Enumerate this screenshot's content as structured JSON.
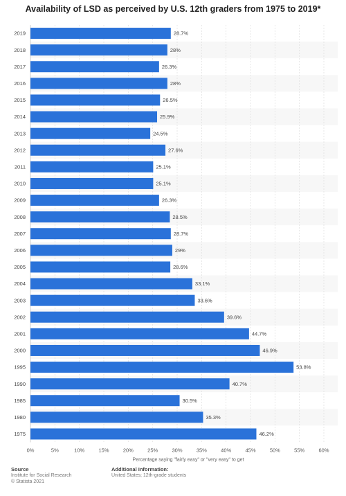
{
  "chart_data": {
    "type": "bar",
    "orientation": "horizontal",
    "title": "Availability of LSD as perceived by U.S. 12th graders from 1975 to 2019*",
    "xlabel": "Percentage saying \"fairly easy\" or \"very easy\" to get",
    "ylabel": "",
    "xlim": [
      0,
      60
    ],
    "x_ticks": [
      "0%",
      "5%",
      "10%",
      "15%",
      "20%",
      "25%",
      "30%",
      "35%",
      "40%",
      "45%",
      "50%",
      "55%",
      "60%"
    ],
    "grid": true,
    "bar_color": "#2a72d9",
    "categories": [
      "2019",
      "2018",
      "2017",
      "2016",
      "2015",
      "2014",
      "2013",
      "2012",
      "2011",
      "2010",
      "2009",
      "2008",
      "2007",
      "2006",
      "2005",
      "2004",
      "2003",
      "2002",
      "2001",
      "2000",
      "1995",
      "1990",
      "1985",
      "1980",
      "1975"
    ],
    "values": [
      28.7,
      28,
      26.3,
      28,
      26.5,
      25.9,
      24.5,
      27.6,
      25.1,
      25.1,
      26.3,
      28.5,
      28.7,
      29,
      28.6,
      33.1,
      33.6,
      39.6,
      44.7,
      46.9,
      53.8,
      40.7,
      30.5,
      35.3,
      46.2
    ],
    "value_labels": [
      "28.7%",
      "28%",
      "26.3%",
      "28%",
      "26.5%",
      "25.9%",
      "24.5%",
      "27.6%",
      "25.1%",
      "25.1%",
      "26.3%",
      "28.5%",
      "28.7%",
      "29%",
      "28.6%",
      "33.1%",
      "33.6%",
      "39.6%",
      "44.7%",
      "46.9%",
      "53.8%",
      "40.7%",
      "30.5%",
      "35.3%",
      "46.2%"
    ]
  },
  "footer": {
    "source_heading": "Source",
    "source_lines": [
      "Institute for Social Research",
      "© Statista 2021"
    ],
    "additional_heading": "Additional Information:",
    "additional_lines": [
      "United States; 12th-grade students"
    ]
  }
}
